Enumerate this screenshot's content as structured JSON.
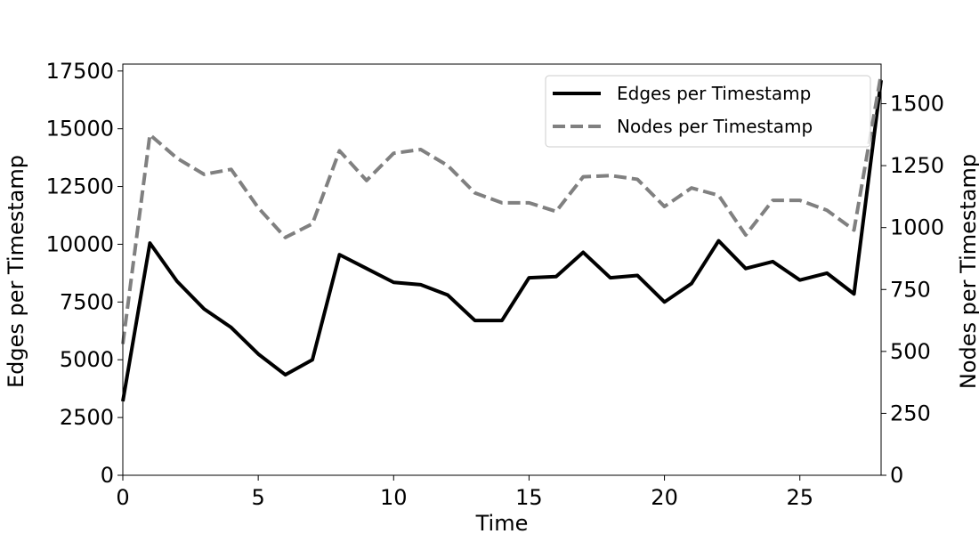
{
  "chart_data": {
    "type": "line",
    "xlabel": "Time",
    "ylabel_left": "Edges per Timestamp",
    "ylabel_right": "Nodes per Timestamp",
    "xlim": [
      0,
      28
    ],
    "ylim_left": [
      0,
      17800
    ],
    "ylim_right": [
      0,
      1660
    ],
    "x_ticks": [
      0,
      5,
      10,
      15,
      20,
      25
    ],
    "y_ticks_left": [
      0,
      2500,
      5000,
      7500,
      10000,
      12500,
      15000,
      17500
    ],
    "y_ticks_right": [
      0,
      250,
      500,
      750,
      1000,
      1250,
      1500
    ],
    "legend_position": "top-right",
    "grid": false,
    "x": [
      0,
      1,
      2,
      3,
      4,
      5,
      6,
      7,
      8,
      9,
      10,
      11,
      12,
      13,
      14,
      15,
      16,
      17,
      18,
      19,
      20,
      21,
      22,
      23,
      24,
      25,
      26,
      27,
      28
    ],
    "series": [
      {
        "name": "Edges per Timestamp",
        "axis": "left",
        "color": "#000000",
        "style": "solid",
        "values": [
          3200,
          10050,
          8400,
          7200,
          6400,
          5250,
          4350,
          5000,
          9550,
          8950,
          8350,
          8250,
          7800,
          6700,
          6700,
          8550,
          8600,
          9650,
          8550,
          8650,
          7500,
          8300,
          10150,
          8950,
          9250,
          8450,
          8750,
          7850,
          17100
        ]
      },
      {
        "name": "Nodes per Timestamp",
        "axis": "right",
        "color": "#808080",
        "style": "dashed",
        "values": [
          530,
          1375,
          1280,
          1215,
          1235,
          1080,
          960,
          1015,
          1310,
          1190,
          1300,
          1315,
          1250,
          1140,
          1100,
          1100,
          1065,
          1205,
          1210,
          1195,
          1085,
          1160,
          1130,
          970,
          1110,
          1110,
          1070,
          990,
          1620
        ]
      }
    ]
  }
}
